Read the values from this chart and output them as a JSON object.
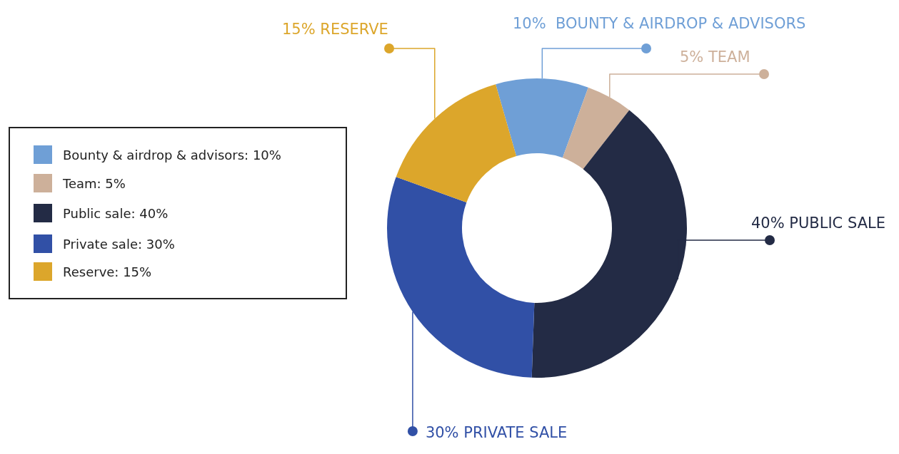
{
  "chart_data": {
    "type": "donut",
    "categories": [
      "Bounty & airdrop & advisors: 10%",
      "Team: 5%",
      "Public sale: 40%",
      "Private sale: 30%",
      "Reserve: 15%"
    ],
    "values": [
      10,
      5,
      40,
      30,
      15
    ],
    "colors": [
      "#6f9fd6",
      "#cdb09a",
      "#232b45",
      "#3150a6",
      "#dca62b"
    ],
    "value_labels": [
      "10%  BOUNTY & AIRDROP & ADVISORS",
      "5% TEAM",
      "40% PUBLIC SALE",
      "30% PRIVATE SALE",
      "15% RESERVE"
    ],
    "legend": "left"
  }
}
